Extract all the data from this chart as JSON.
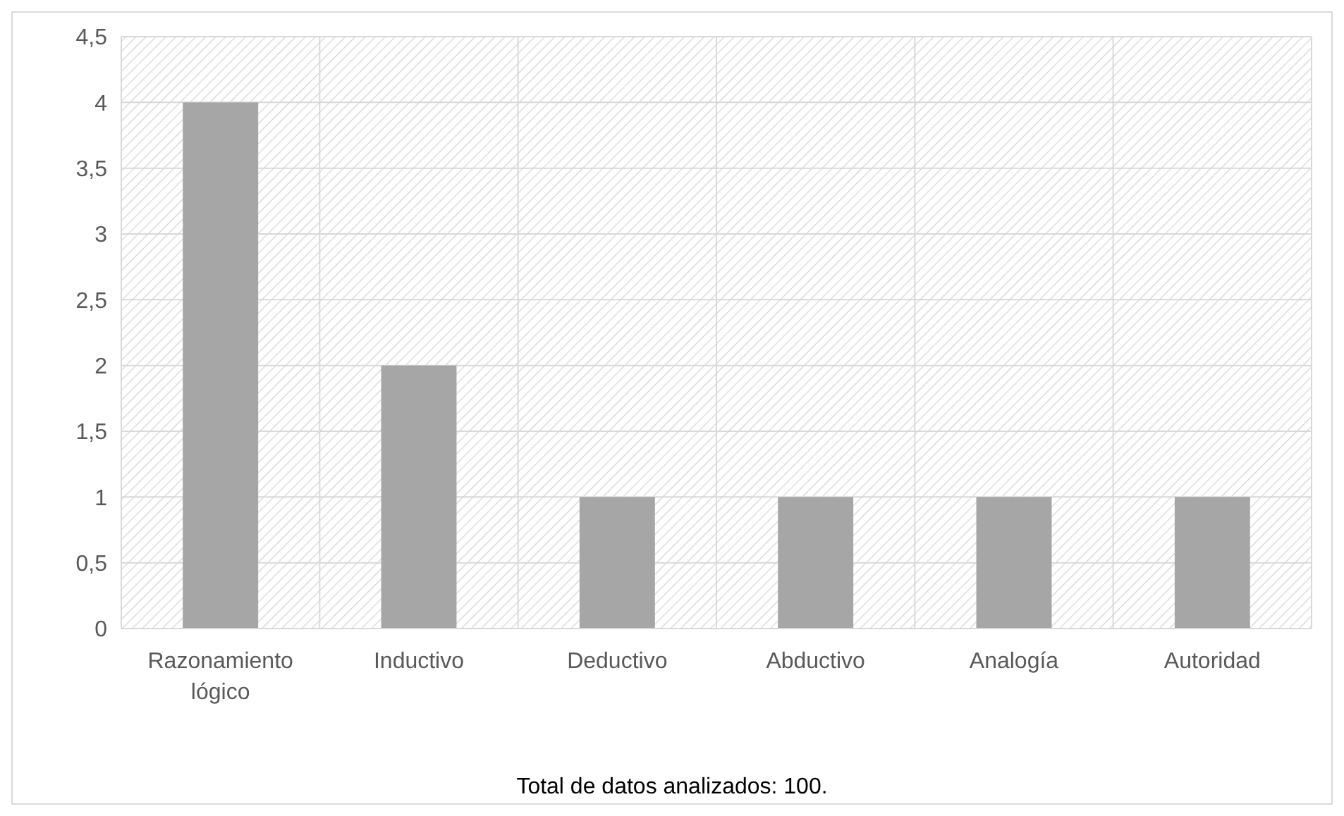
{
  "chart_data": {
    "type": "bar",
    "categories": [
      "Razonamiento lógico",
      "Inductivo",
      "Deductivo",
      "Abductivo",
      "Analogía",
      "Autoridad"
    ],
    "values": [
      4,
      2,
      1,
      1,
      1,
      1
    ],
    "color": "#a6a6a6",
    "ylim": [
      0,
      4.5
    ],
    "yticks": [
      0,
      {
        "value": 0.5,
        "label": "0,5"
      },
      1,
      {
        "value": 1.5,
        "label": "1,5"
      },
      2,
      {
        "value": 2.5,
        "label": "2,5"
      },
      3,
      {
        "value": 3.5,
        "label": "3,5"
      },
      4,
      {
        "value": 4.5,
        "label": "4,5"
      }
    ],
    "grid": true,
    "annotations": [
      "Total de datos analizados: 100."
    ]
  }
}
